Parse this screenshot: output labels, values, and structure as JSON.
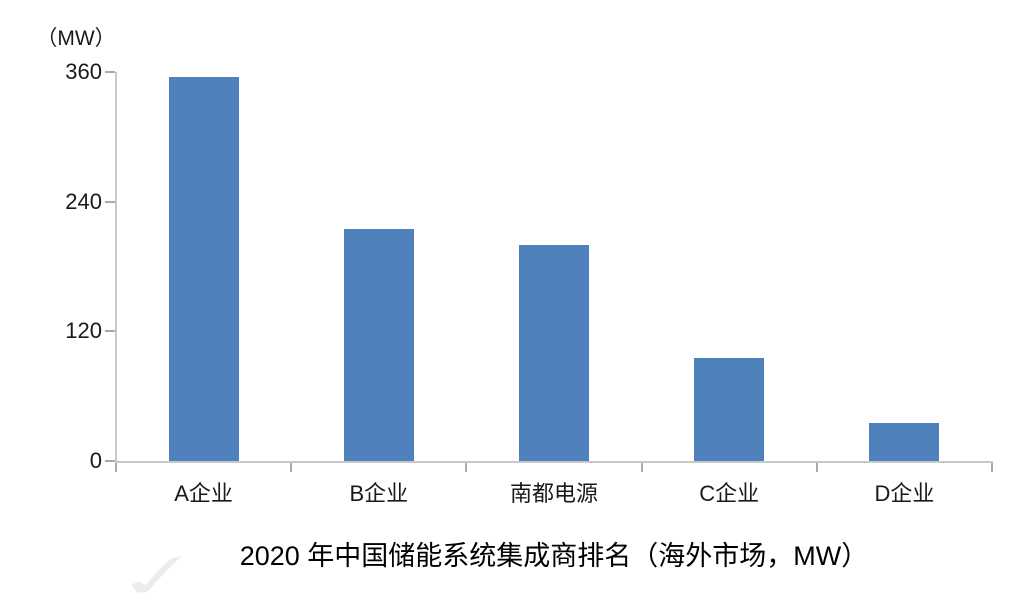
{
  "chart_data": {
    "type": "bar",
    "title": "2020 年中国储能系统集成商排名（海外市场，MW）",
    "ylabel": "（MW）",
    "categories": [
      "A企业",
      "B企业",
      "南都电源",
      "C企业",
      "D企业"
    ],
    "values": [
      355,
      215,
      200,
      95,
      35
    ],
    "yticks": [
      0,
      120,
      240,
      360
    ],
    "ylim": [
      0,
      360
    ],
    "grid": false,
    "legend": "none",
    "colors": {
      "bar": "#4F81BD",
      "axis_line": "#C8C8C8",
      "tick": "#A9A9A9",
      "text": "#1A1A1A"
    }
  },
  "icons": {
    "watermark_check": "✓"
  }
}
